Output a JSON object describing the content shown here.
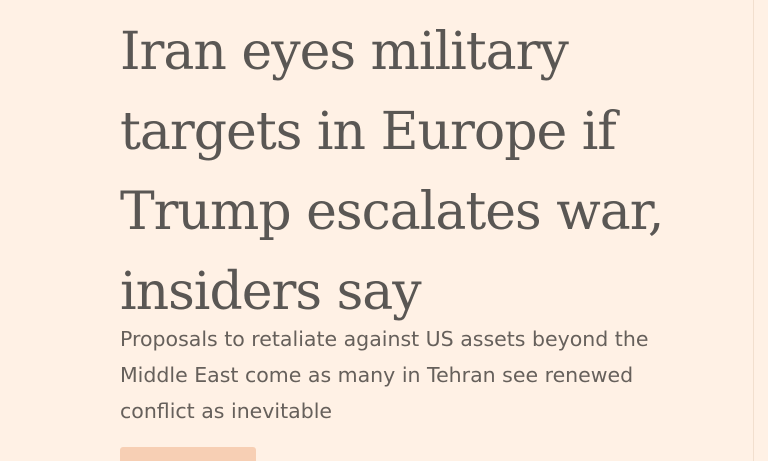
{
  "article": {
    "headline": "Iran eyes military targets in Europe if Trump escalates war, insiders say",
    "standfirst": "Proposals to retaliate against US assets beyond the Middle East come as many in Tehran see renewed conflict as inevitable"
  },
  "colors": {
    "background": "#fff1e5",
    "headline": "#5a5754",
    "standfirst": "#66605b",
    "button": "#f7cfb4"
  }
}
